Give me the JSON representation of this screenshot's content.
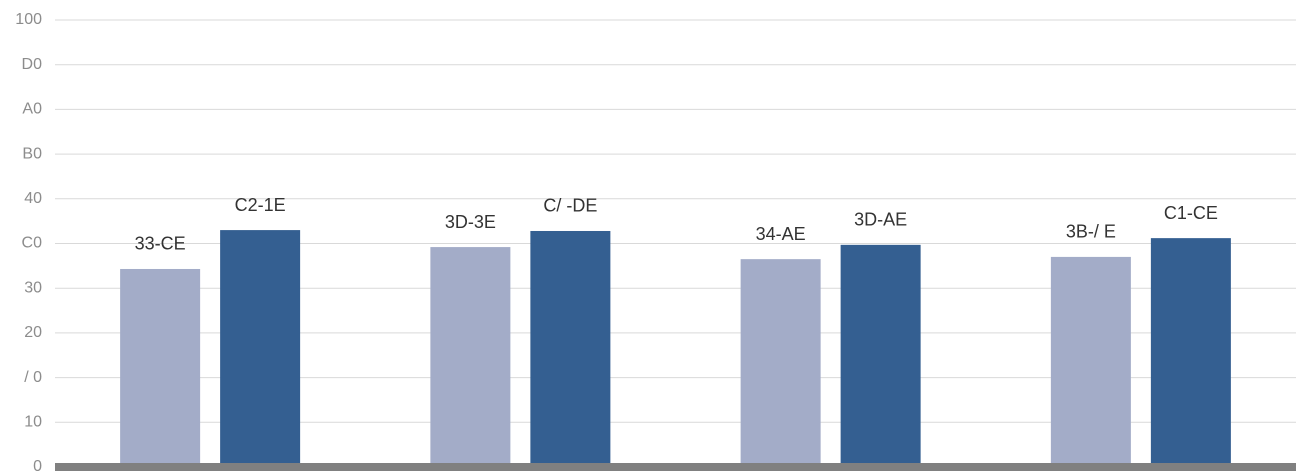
{
  "chart_data": {
    "type": "bar",
    "categories": [
      null,
      null,
      null,
      null
    ],
    "series": [
      {
        "color": "#a3acc8",
        "values": [
          44.3,
          49.2,
          46.5,
          47.0
        ],
        "value_labels": [
          "33-CE",
          "3D-3E",
          "34-AE",
          "3B-/ E"
        ]
      },
      {
        "color": "#345f91",
        "values": [
          53.0,
          52.8,
          49.7,
          51.2
        ],
        "value_labels": [
          "C2-1E",
          "C/ -DE",
          "3D-AE",
          "C1-CE"
        ]
      }
    ],
    "ylim": [
      0,
      100
    ],
    "yticks": [
      0,
      10,
      {
        "value": 20,
        "label": "/ 0"
      },
      {
        "value": 30,
        "label": "20"
      },
      {
        "value": 40,
        "label": "30"
      },
      {
        "value": 50,
        "label": "C0"
      },
      {
        "value": 60,
        "label": "40"
      },
      {
        "value": 70,
        "label": "B0"
      },
      {
        "value": 80,
        "label": "A0"
      },
      {
        "value": 90,
        "label": "D0"
      },
      100
    ],
    "grid": true
  }
}
